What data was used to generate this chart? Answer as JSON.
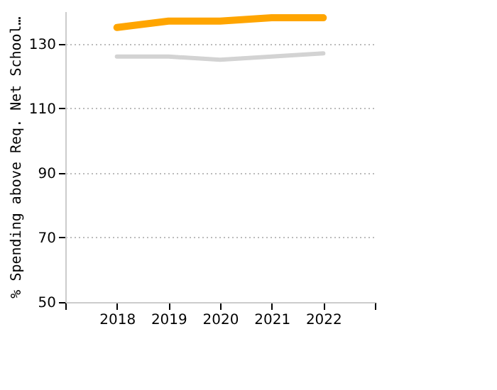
{
  "chart_data": {
    "type": "line",
    "ylabel": "% Spending above Req. Net School…",
    "x": [
      2018,
      2019,
      2020,
      2021,
      2022
    ],
    "series": [
      {
        "color": "#ffa500",
        "values": [
          135,
          137,
          137,
          138,
          138
        ]
      },
      {
        "color": "#d3d3d3",
        "values": [
          126,
          126,
          125,
          126,
          127
        ]
      }
    ],
    "xlim": [
      2017,
      2023
    ],
    "xticks": [
      {
        "value": 2017,
        "label": null
      },
      2018,
      2019,
      2020,
      2021,
      2022,
      {
        "value": 2023,
        "label": null
      }
    ],
    "ylim": [
      50,
      140
    ],
    "yticks": [
      50,
      70,
      90,
      110,
      130
    ],
    "grid": "y",
    "marker": "none",
    "line_style": "solid"
  }
}
